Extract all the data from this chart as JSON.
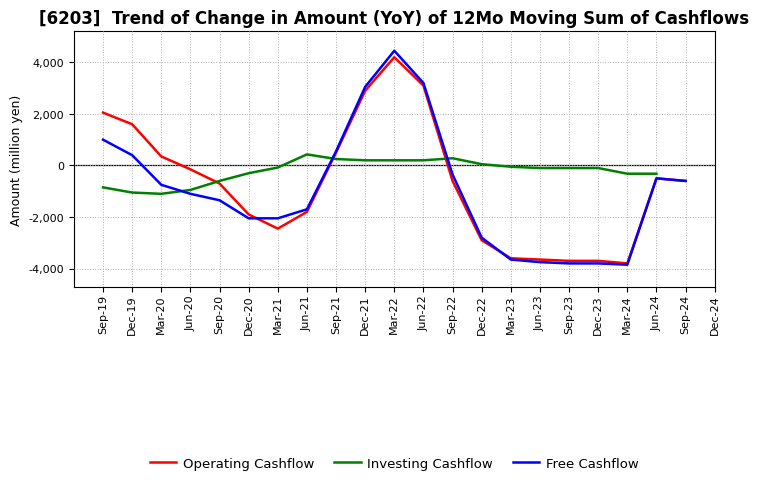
{
  "title": "[6203]  Trend of Change in Amount (YoY) of 12Mo Moving Sum of Cashflows",
  "ylabel": "Amount (million yen)",
  "background_color": "#ffffff",
  "grid_color": "#b0b0b0",
  "x_labels": [
    "Sep-19",
    "Dec-19",
    "Mar-20",
    "Jun-20",
    "Sep-20",
    "Dec-20",
    "Mar-21",
    "Jun-21",
    "Sep-21",
    "Dec-21",
    "Mar-22",
    "Jun-22",
    "Sep-22",
    "Dec-22",
    "Mar-23",
    "Jun-23",
    "Sep-23",
    "Dec-23",
    "Mar-24",
    "Jun-24",
    "Sep-24",
    "Dec-24"
  ],
  "operating": [
    2050,
    1600,
    350,
    -150,
    -700,
    -1900,
    -2450,
    -1800,
    500,
    2900,
    4200,
    3100,
    -600,
    -2900,
    -3600,
    -3650,
    -3700,
    -3700,
    -3800,
    -500,
    -600,
    null
  ],
  "investing": [
    -850,
    -1050,
    -1100,
    -950,
    -600,
    -300,
    -80,
    430,
    250,
    200,
    200,
    200,
    280,
    50,
    -50,
    -100,
    -100,
    -100,
    -320,
    -320,
    null,
    null
  ],
  "free": [
    1000,
    400,
    -750,
    -1100,
    -1350,
    -2050,
    -2050,
    -1700,
    550,
    3050,
    4450,
    3200,
    -350,
    -2800,
    -3650,
    -3750,
    -3800,
    -3800,
    -3850,
    -500,
    -600,
    null
  ],
  "operating_color": "#ff0000",
  "investing_color": "#008000",
  "free_color": "#0000ff",
  "ylim": [
    -4700,
    5200
  ],
  "yticks": [
    -4000,
    -2000,
    0,
    2000,
    4000
  ],
  "line_width": 1.8,
  "title_fontsize": 12,
  "legend_fontsize": 9.5,
  "tick_fontsize": 8,
  "ylabel_fontsize": 9
}
